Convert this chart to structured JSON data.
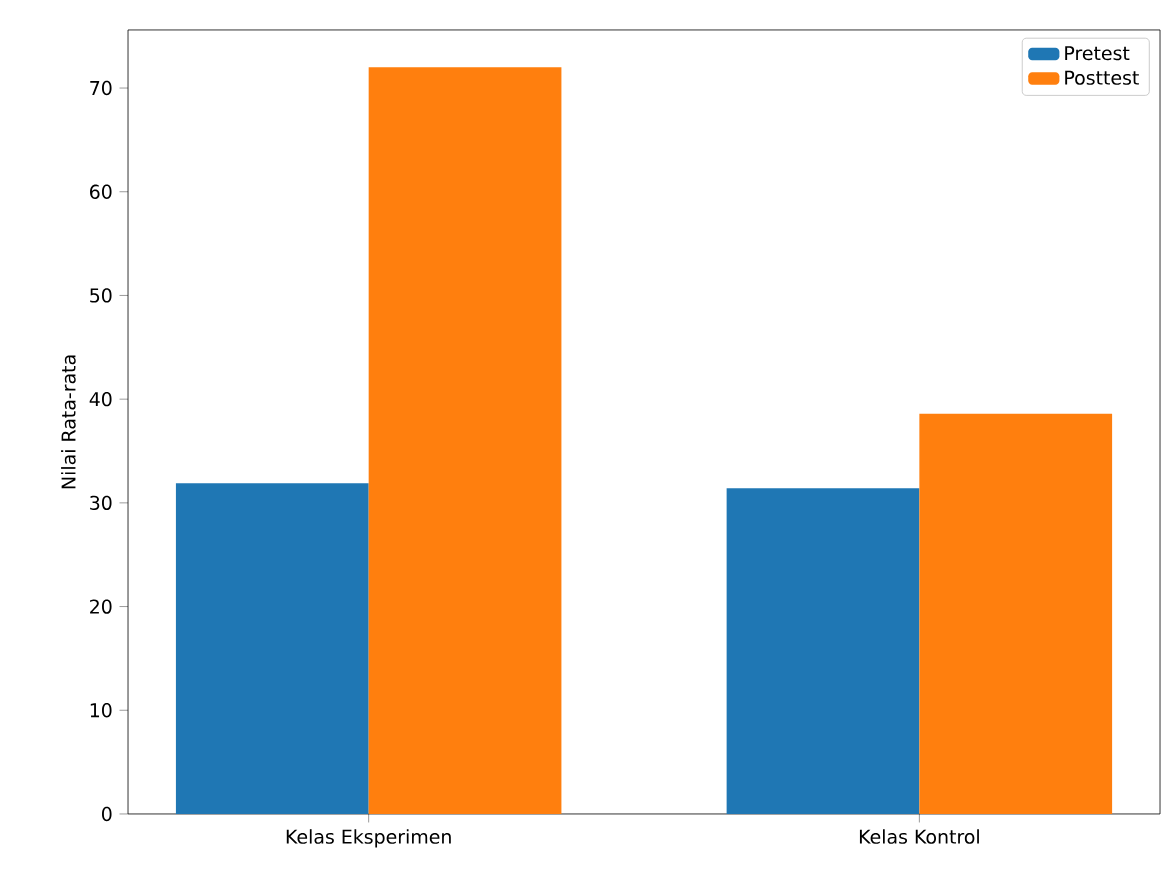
{
  "chart_data": {
    "type": "bar",
    "ylabel": "Nilai Rata-rata",
    "categories": [
      "Kelas Eksperimen",
      "Kelas Kontrol"
    ],
    "series": [
      {
        "name": "Pretest",
        "color": "#1f77b4",
        "values": [
          31.9,
          31.4
        ]
      },
      {
        "name": "Posttest",
        "color": "#ff7f0e",
        "values": [
          72.0,
          38.6
        ]
      }
    ],
    "ylim": [
      0,
      75.6
    ],
    "yticks": [
      0,
      10,
      20,
      30,
      40,
      50,
      60,
      70
    ],
    "legend": "top right",
    "grid": false
  }
}
